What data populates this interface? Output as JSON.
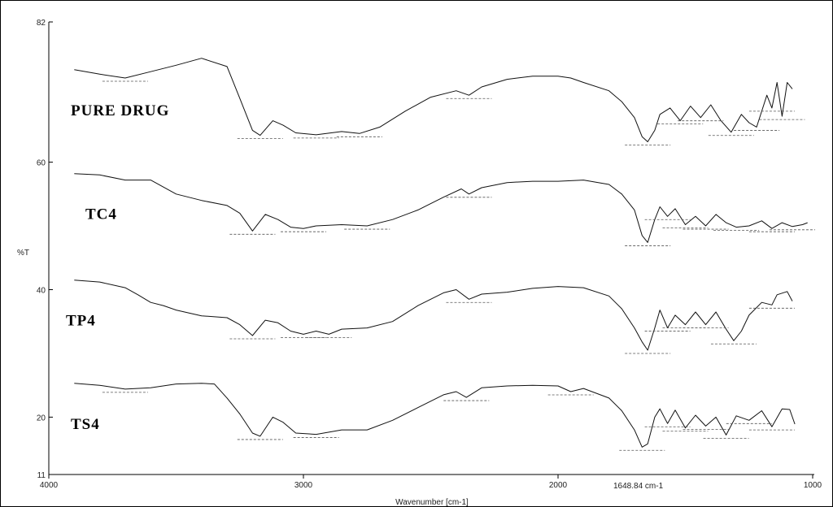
{
  "chart_data": {
    "type": "line",
    "title": "",
    "xlabel": "Wavenumber [cm-1]",
    "ylabel": "%T",
    "xlim": [
      4000,
      1000
    ],
    "ylim": [
      11,
      82
    ],
    "x_ticks": [
      "4000",
      "3000",
      "2000",
      "1000"
    ],
    "y_ticks": [
      "82",
      "60",
      "40",
      "20",
      "11"
    ],
    "annotations": [
      "1648.84 cm-1"
    ],
    "series": [
      {
        "name": "PURE DRUG",
        "points": [
          [
            3900,
            74.5
          ],
          [
            3800,
            73.8
          ],
          [
            3700,
            73.2
          ],
          [
            3600,
            74.2
          ],
          [
            3500,
            75.2
          ],
          [
            3400,
            76.3
          ],
          [
            3300,
            75
          ],
          [
            3250,
            70
          ],
          [
            3200,
            65
          ],
          [
            3170,
            64.2
          ],
          [
            3120,
            66.5
          ],
          [
            3080,
            65.8
          ],
          [
            3030,
            64.6
          ],
          [
            2950,
            64.3
          ],
          [
            2850,
            64.8
          ],
          [
            2780,
            64.5
          ],
          [
            2700,
            65.5
          ],
          [
            2600,
            68
          ],
          [
            2500,
            70.2
          ],
          [
            2400,
            71.2
          ],
          [
            2350,
            70.5
          ],
          [
            2300,
            71.8
          ],
          [
            2200,
            73
          ],
          [
            2100,
            73.5
          ],
          [
            2000,
            73.5
          ],
          [
            1950,
            73.2
          ],
          [
            1900,
            72.5
          ],
          [
            1800,
            71.2
          ],
          [
            1750,
            69.5
          ],
          [
            1700,
            67
          ],
          [
            1670,
            64
          ],
          [
            1648,
            63.2
          ],
          [
            1620,
            65
          ],
          [
            1600,
            67.5
          ],
          [
            1560,
            68.5
          ],
          [
            1520,
            66.5
          ],
          [
            1480,
            68.8
          ],
          [
            1440,
            67
          ],
          [
            1400,
            69
          ],
          [
            1360,
            66.5
          ],
          [
            1320,
            64.7
          ],
          [
            1280,
            67.5
          ],
          [
            1250,
            66.2
          ],
          [
            1220,
            65.5
          ],
          [
            1180,
            70.5
          ],
          [
            1160,
            68.5
          ],
          [
            1140,
            72.5
          ],
          [
            1120,
            67.2
          ],
          [
            1100,
            72.5
          ],
          [
            1080,
            71.5
          ]
        ]
      },
      {
        "name": "TC4",
        "points": [
          [
            3900,
            58.2
          ],
          [
            3800,
            58
          ],
          [
            3700,
            57.2
          ],
          [
            3600,
            57.2
          ],
          [
            3500,
            55
          ],
          [
            3400,
            54
          ],
          [
            3300,
            53.2
          ],
          [
            3250,
            52
          ],
          [
            3200,
            49.2
          ],
          [
            3150,
            51.8
          ],
          [
            3100,
            51
          ],
          [
            3050,
            49.8
          ],
          [
            3000,
            49.6
          ],
          [
            2950,
            50
          ],
          [
            2850,
            50.2
          ],
          [
            2750,
            50
          ],
          [
            2650,
            51
          ],
          [
            2550,
            52.5
          ],
          [
            2450,
            54.5
          ],
          [
            2380,
            55.8
          ],
          [
            2350,
            55
          ],
          [
            2300,
            56
          ],
          [
            2200,
            56.8
          ],
          [
            2100,
            57
          ],
          [
            2000,
            57
          ],
          [
            1900,
            57.2
          ],
          [
            1800,
            56.5
          ],
          [
            1750,
            55
          ],
          [
            1700,
            52.5
          ],
          [
            1670,
            48.5
          ],
          [
            1648,
            47.4
          ],
          [
            1620,
            51
          ],
          [
            1600,
            53
          ],
          [
            1570,
            51.5
          ],
          [
            1540,
            52.7
          ],
          [
            1500,
            50.2
          ],
          [
            1460,
            51.5
          ],
          [
            1420,
            50
          ],
          [
            1380,
            51.8
          ],
          [
            1340,
            50.5
          ],
          [
            1300,
            49.8
          ],
          [
            1250,
            50
          ],
          [
            1200,
            50.8
          ],
          [
            1160,
            49.6
          ],
          [
            1120,
            50.5
          ],
          [
            1080,
            49.9
          ],
          [
            1040,
            50.2
          ],
          [
            1020,
            50.5
          ]
        ]
      },
      {
        "name": "TP4",
        "points": [
          [
            3900,
            41.5
          ],
          [
            3800,
            41.2
          ],
          [
            3700,
            40.3
          ],
          [
            3650,
            39.2
          ],
          [
            3600,
            38
          ],
          [
            3550,
            37.5
          ],
          [
            3500,
            36.8
          ],
          [
            3400,
            35.9
          ],
          [
            3300,
            35.6
          ],
          [
            3250,
            34.5
          ],
          [
            3200,
            32.8
          ],
          [
            3150,
            35.2
          ],
          [
            3100,
            34.8
          ],
          [
            3050,
            33.5
          ],
          [
            3000,
            33
          ],
          [
            2950,
            33.5
          ],
          [
            2900,
            33
          ],
          [
            2850,
            33.8
          ],
          [
            2750,
            34
          ],
          [
            2650,
            35
          ],
          [
            2550,
            37.5
          ],
          [
            2450,
            39.5
          ],
          [
            2400,
            40
          ],
          [
            2350,
            38.5
          ],
          [
            2300,
            39.3
          ],
          [
            2200,
            39.6
          ],
          [
            2100,
            40.2
          ],
          [
            2000,
            40.5
          ],
          [
            1900,
            40.3
          ],
          [
            1800,
            39
          ],
          [
            1750,
            37
          ],
          [
            1700,
            34
          ],
          [
            1670,
            31.8
          ],
          [
            1648,
            30.5
          ],
          [
            1620,
            34
          ],
          [
            1600,
            36.8
          ],
          [
            1570,
            34
          ],
          [
            1540,
            36
          ],
          [
            1500,
            34.5
          ],
          [
            1460,
            36.5
          ],
          [
            1420,
            34.5
          ],
          [
            1380,
            36.5
          ],
          [
            1340,
            33.8
          ],
          [
            1310,
            32
          ],
          [
            1280,
            33.5
          ],
          [
            1250,
            36
          ],
          [
            1200,
            38
          ],
          [
            1160,
            37.6
          ],
          [
            1140,
            39.2
          ],
          [
            1100,
            39.7
          ],
          [
            1080,
            38.2
          ]
        ]
      },
      {
        "name": "TS4",
        "points": [
          [
            3900,
            25.3
          ],
          [
            3800,
            25
          ],
          [
            3700,
            24.4
          ],
          [
            3600,
            24.6
          ],
          [
            3500,
            25.2
          ],
          [
            3400,
            25.3
          ],
          [
            3350,
            25.2
          ],
          [
            3300,
            23
          ],
          [
            3250,
            20.5
          ],
          [
            3200,
            17.5
          ],
          [
            3170,
            17
          ],
          [
            3120,
            20
          ],
          [
            3080,
            19.2
          ],
          [
            3030,
            17.5
          ],
          [
            2950,
            17.3
          ],
          [
            2850,
            18
          ],
          [
            2750,
            18
          ],
          [
            2650,
            19.5
          ],
          [
            2550,
            21.5
          ],
          [
            2450,
            23.5
          ],
          [
            2400,
            24
          ],
          [
            2360,
            23.1
          ],
          [
            2300,
            24.6
          ],
          [
            2200,
            24.9
          ],
          [
            2100,
            25
          ],
          [
            2000,
            24.9
          ],
          [
            1950,
            24
          ],
          [
            1900,
            24.5
          ],
          [
            1800,
            23
          ],
          [
            1750,
            21
          ],
          [
            1700,
            18
          ],
          [
            1670,
            15.3
          ],
          [
            1648,
            15.8
          ],
          [
            1620,
            20
          ],
          [
            1600,
            21.3
          ],
          [
            1570,
            19
          ],
          [
            1540,
            21.1
          ],
          [
            1500,
            18.3
          ],
          [
            1460,
            20.3
          ],
          [
            1420,
            18.6
          ],
          [
            1380,
            20
          ],
          [
            1340,
            17.2
          ],
          [
            1300,
            20.2
          ],
          [
            1250,
            19.5
          ],
          [
            1200,
            21
          ],
          [
            1160,
            18.5
          ],
          [
            1120,
            21.3
          ],
          [
            1090,
            21.2
          ],
          [
            1070,
            18.9
          ]
        ]
      }
    ]
  }
}
